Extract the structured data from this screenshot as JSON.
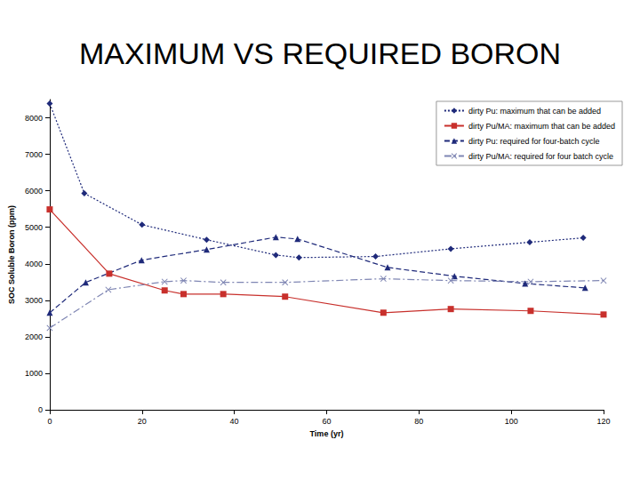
{
  "chart_data": {
    "type": "line",
    "title": "MAXIMUM VS REQUIRED BORON",
    "x_label": "Time (yr)",
    "y_label": "SOC Soluble Boron (ppm)",
    "xlim": [
      0,
      120
    ],
    "xticks": [
      0,
      20,
      40,
      60,
      80,
      100,
      120
    ],
    "ylim": [
      0,
      8500
    ],
    "yticks": [
      0,
      1000,
      2000,
      3000,
      4000,
      5000,
      6000,
      7000,
      8000
    ],
    "grid": false,
    "legend": "upper right",
    "series": [
      {
        "name": "dirty Pu: maximum that can be added",
        "color": "#1f2a7a",
        "marker": "diamond",
        "line_style": "dotted",
        "x": [
          0,
          7.5,
          20,
          34,
          49,
          54,
          70.6,
          86.9,
          104,
          115.6
        ],
        "values": [
          8390,
          5930,
          5070,
          4660,
          4240,
          4170,
          4200,
          4410,
          4590,
          4710
        ]
      },
      {
        "name": "dirty Pu/MA: maximum that can be added",
        "color": "#c8302c",
        "marker": "square",
        "line_style": "solid",
        "x": [
          0,
          12.9,
          24.9,
          29,
          37.6,
          51,
          72.3,
          86.9,
          104.2,
          120
        ],
        "values": [
          5490,
          3730,
          3270,
          3170,
          3170,
          3100,
          2660,
          2760,
          2710,
          2610
        ]
      },
      {
        "name": "dirty Pu: required for four-batch cycle",
        "color": "#1f2a7a",
        "marker": "triangle",
        "line_style": "dashed",
        "x": [
          0,
          7.8,
          19.9,
          34,
          49,
          53.7,
          73.2,
          87.7,
          103,
          116
        ],
        "values": [
          2660,
          3490,
          4100,
          4390,
          4730,
          4680,
          3900,
          3660,
          3460,
          3340
        ]
      },
      {
        "name": "dirty Pu/MA: required for four batch cycle",
        "color": "#7f86b3",
        "marker": "x",
        "line_style": "dashdot",
        "x": [
          0,
          12.7,
          24.9,
          29,
          37.6,
          51,
          72.3,
          86.9,
          104.2,
          120
        ],
        "values": [
          2240,
          3290,
          3510,
          3540,
          3490,
          3490,
          3590,
          3540,
          3510,
          3540
        ]
      }
    ]
  }
}
